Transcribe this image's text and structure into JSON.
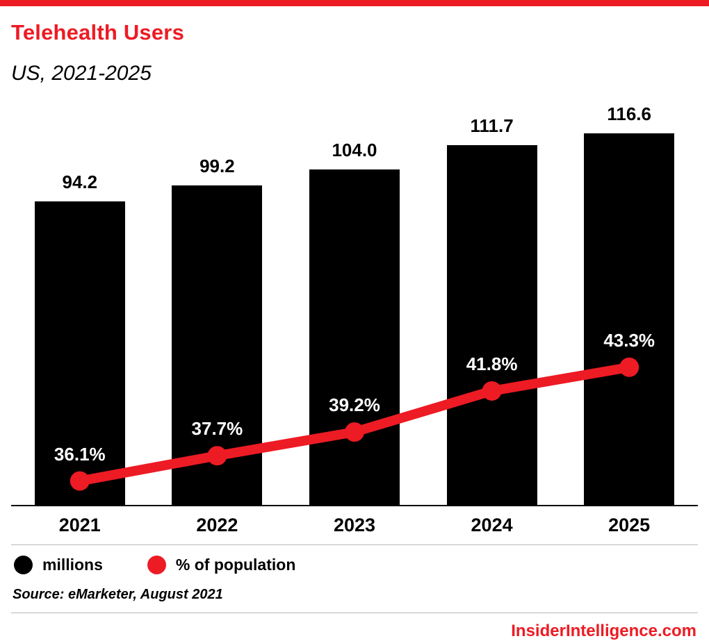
{
  "header": {
    "title": "Telehealth Users",
    "subtitle": "US, 2021-2025"
  },
  "legend": [
    {
      "label": "millions",
      "color": "#000000"
    },
    {
      "label": "% of population",
      "color": "#ed1b24"
    }
  ],
  "source": "Source: eMarketer, August 2021",
  "footer": "InsiderIntelligence.com",
  "colors": {
    "accent": "#ed1b24",
    "bar": "#000000",
    "divider": "#b9b9b9"
  },
  "chart_data": {
    "type": "bar",
    "subtype": "bar+line combo",
    "title": "Telehealth Users",
    "subtitle": "US, 2021-2025",
    "categories": [
      "2021",
      "2022",
      "2023",
      "2024",
      "2025"
    ],
    "series": [
      {
        "name": "millions",
        "type": "bar",
        "values": [
          94.2,
          99.2,
          104.0,
          111.7,
          116.6
        ],
        "labels": [
          "94.2",
          "99.2",
          "104.0",
          "111.7",
          "116.6"
        ],
        "color": "#000000"
      },
      {
        "name": "% of population",
        "type": "line",
        "values": [
          36.1,
          37.7,
          39.2,
          41.8,
          43.3
        ],
        "labels": [
          "36.1%",
          "37.7%",
          "39.2%",
          "41.8%",
          "43.3%"
        ],
        "color": "#ed1b24"
      }
    ],
    "ylim": [
      0,
      125
    ],
    "y2lim": [
      34.5,
      60
    ],
    "grid": false,
    "legend_position": "bottom",
    "source": "Source: eMarketer, August 2021"
  }
}
